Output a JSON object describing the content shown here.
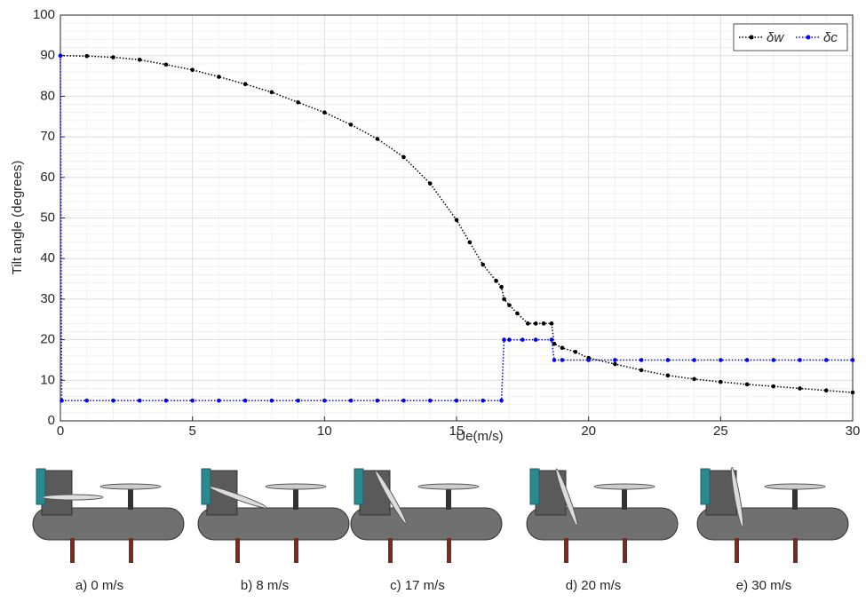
{
  "chart_data": {
    "type": "line",
    "x_label": "Ue(m/s)",
    "y_label": "Tilt angle (degrees)",
    "xlim": [
      0,
      30
    ],
    "xticks": [
      0,
      5,
      10,
      15,
      20,
      25,
      30
    ],
    "ylim": [
      0,
      100
    ],
    "yticks": [
      0,
      10,
      20,
      30,
      40,
      50,
      60,
      70,
      80,
      90,
      100
    ],
    "grid": true,
    "minor_grid": true,
    "legend": "top-right",
    "series": [
      {
        "name": "δw",
        "color": "#000000",
        "x": [
          0,
          1,
          2,
          3,
          4,
          5,
          6,
          7,
          8,
          9,
          10,
          11,
          12,
          13,
          14,
          15,
          15.5,
          16,
          16.5,
          16.7,
          16.8,
          17,
          17.3,
          17.7,
          18,
          18.3,
          18.6,
          18.7,
          19,
          19.5,
          20,
          21,
          22,
          23,
          24,
          25,
          26,
          27,
          28,
          29,
          30
        ],
        "values": [
          90,
          89.9,
          89.6,
          89,
          87.8,
          86.5,
          84.8,
          83,
          81,
          78.5,
          76,
          73,
          69.5,
          65,
          58.5,
          49.5,
          44,
          38.5,
          34.5,
          33,
          30,
          28.5,
          26.5,
          24,
          24,
          24,
          24,
          19,
          18,
          17,
          15.5,
          14,
          12.5,
          11.2,
          10.3,
          9.6,
          9,
          8.5,
          8,
          7.5,
          7
        ]
      },
      {
        "name": "δc",
        "color": "#0000ff",
        "x": [
          0,
          0.05,
          1,
          2,
          3,
          4,
          5,
          6,
          7,
          8,
          9,
          10,
          11,
          12,
          13,
          14,
          15,
          16,
          16.7,
          16.8,
          17,
          17.5,
          18,
          18.6,
          18.7,
          19,
          20,
          21,
          22,
          23,
          24,
          25,
          26,
          27,
          28,
          29,
          30
        ],
        "values": [
          90,
          5,
          5,
          5,
          5,
          5,
          5,
          5,
          5,
          5,
          5,
          5,
          5,
          5,
          5,
          5,
          5,
          5,
          5,
          20,
          20,
          20,
          20,
          20,
          15,
          15,
          15,
          15,
          15,
          15,
          15,
          15,
          15,
          15,
          15,
          15,
          15
        ]
      }
    ]
  },
  "panels": {
    "captions": [
      "a) 0 m/s",
      "b) 8 m/s",
      "c) 17 m/s",
      "d) 20 m/s",
      "e) 30 m/s"
    ]
  }
}
